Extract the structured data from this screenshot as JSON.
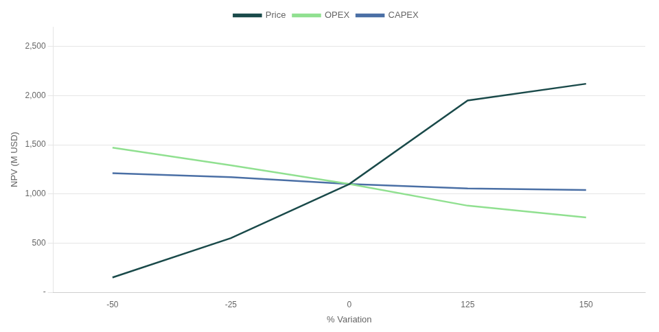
{
  "chart_data": {
    "type": "line",
    "xlabel": "% Variation",
    "ylabel": "NPV (M USD)",
    "categories": [
      "-50",
      "-25",
      "0",
      "125",
      "150"
    ],
    "series": [
      {
        "name": "Price",
        "color": "#1a4a4a",
        "values": [
          150,
          550,
          1100,
          1950,
          2120
        ]
      },
      {
        "name": "OPEX",
        "color": "#90e090",
        "values": [
          1470,
          1290,
          1100,
          880,
          760
        ]
      },
      {
        "name": "CAPEX",
        "color": "#4a6fa5",
        "values": [
          1210,
          1170,
          1100,
          1055,
          1040
        ]
      }
    ],
    "ylim": [
      0,
      2700
    ],
    "yticks": [
      {
        "value": 0,
        "label": "-"
      },
      500,
      {
        "value": 1000,
        "label": "1,000"
      },
      {
        "value": 1500,
        "label": "1,500"
      },
      {
        "value": 2000,
        "label": "2,000"
      },
      {
        "value": 2500,
        "label": "2,500"
      }
    ],
    "grid": true,
    "legend": "top"
  }
}
